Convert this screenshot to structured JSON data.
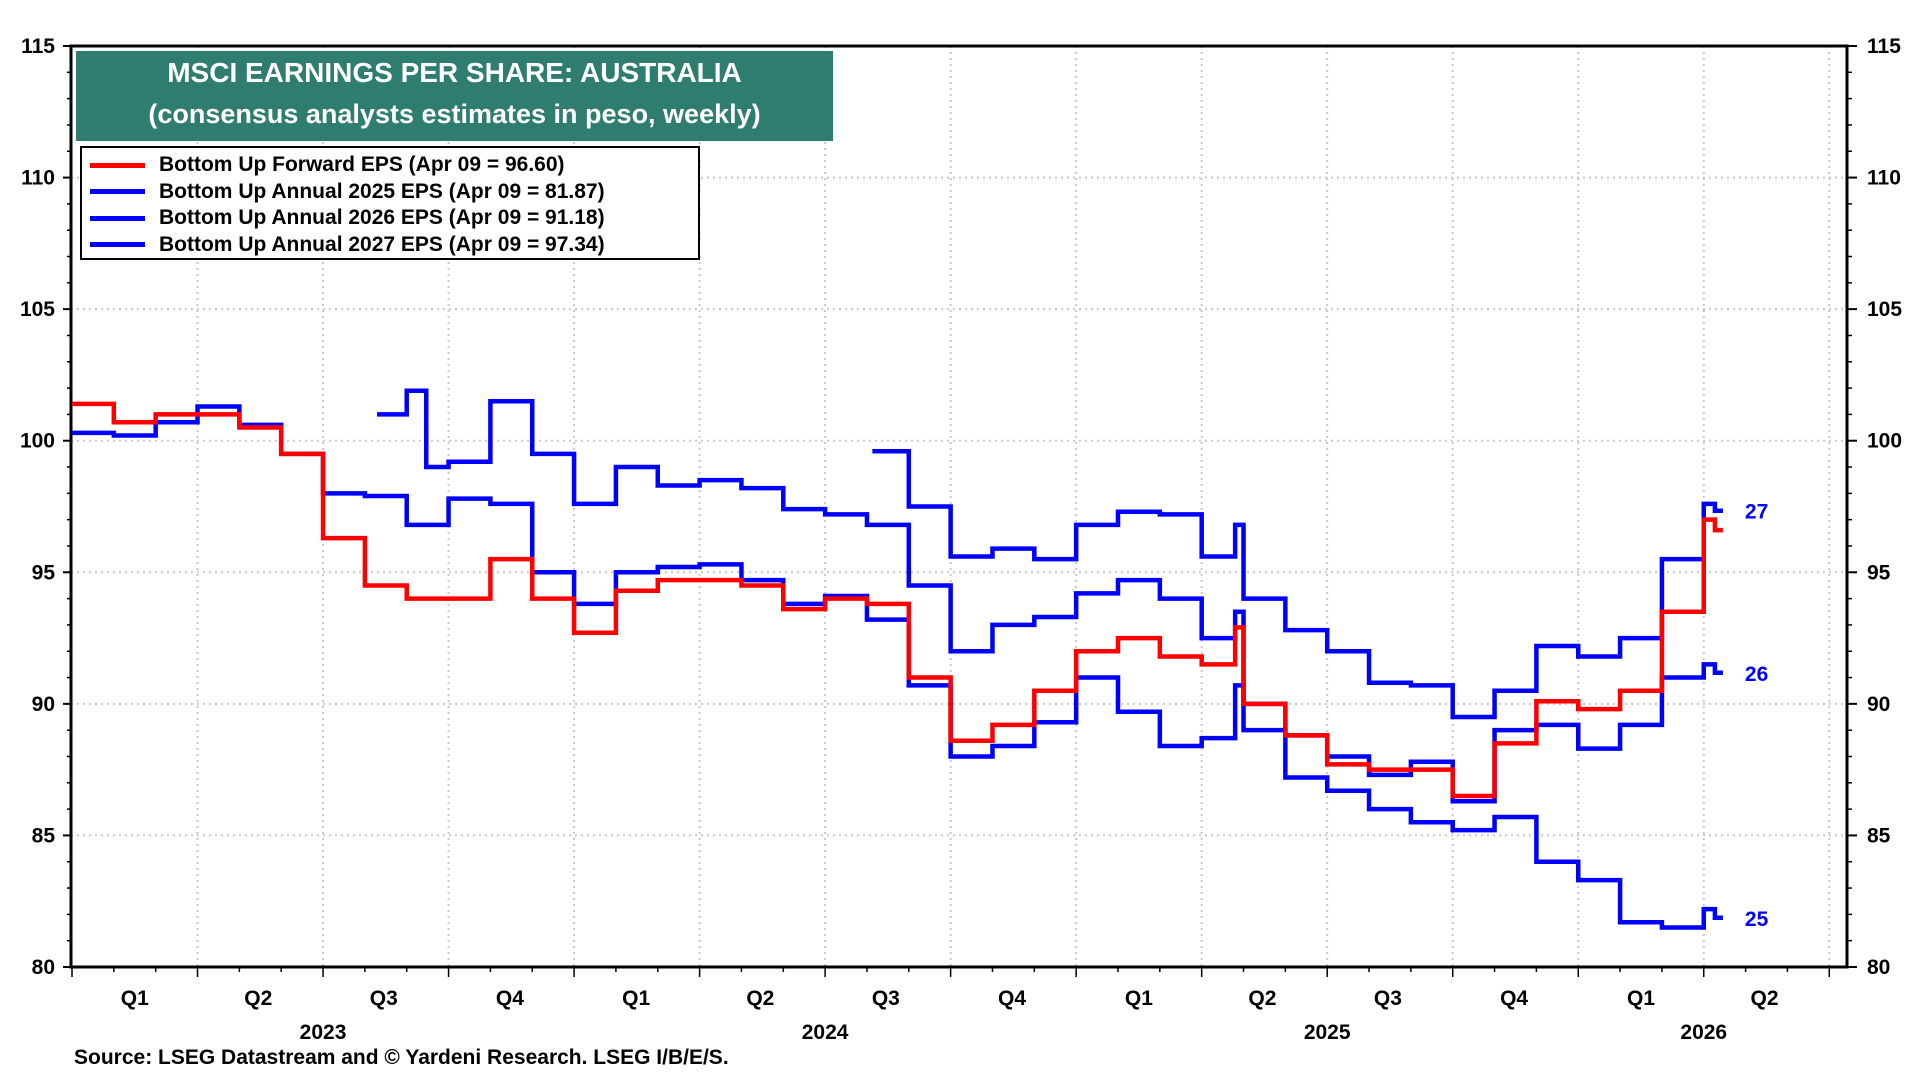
{
  "chart_data": {
    "type": "line",
    "title": "MSCI EARNINGS PER SHARE: AUSTRALIA",
    "subtitle": "(consensus analysts estimates in peso, weekly)",
    "source": "Source: LSEG Datastream and © Yardeni Research. LSEG I/B/E/S.",
    "ylim": [
      80,
      115
    ],
    "yticks": [
      "80",
      "85",
      "90",
      "95",
      "100",
      "105",
      "110",
      "115"
    ],
    "xlim": [
      "2023-01-01",
      "2026-07-15"
    ],
    "x_quarter_labels": [
      {
        "label": "Q1",
        "date": "2023-02-15"
      },
      {
        "label": "Q2",
        "date": "2023-05-15"
      },
      {
        "label": "Q3",
        "date": "2023-08-15"
      },
      {
        "label": "Q4",
        "date": "2023-11-15"
      },
      {
        "label": "Q1",
        "date": "2024-02-15"
      },
      {
        "label": "Q2",
        "date": "2024-05-15"
      },
      {
        "label": "Q3",
        "date": "2024-08-15"
      },
      {
        "label": "Q4",
        "date": "2024-11-15"
      },
      {
        "label": "Q1",
        "date": "2025-02-15"
      },
      {
        "label": "Q2",
        "date": "2025-05-15"
      },
      {
        "label": "Q3",
        "date": "2025-08-15"
      },
      {
        "label": "Q4",
        "date": "2025-11-15"
      },
      {
        "label": "Q1",
        "date": "2026-02-15"
      },
      {
        "label": "Q2",
        "date": "2026-05-15"
      }
    ],
    "x_year_labels": [
      {
        "label": "2023",
        "date": "2023-07-01"
      },
      {
        "label": "2024",
        "date": "2024-07-01"
      },
      {
        "label": "2025",
        "date": "2025-07-01"
      },
      {
        "label": "2026",
        "date": "2026-04-01"
      }
    ],
    "grid": true,
    "legend_position": "top-left",
    "series": [
      {
        "name": "Bottom Up Forward EPS (Apr 09 = 96.60)",
        "color": "#ff0000",
        "end_label": "",
        "points": [
          [
            "2023-01-01",
            101.4
          ],
          [
            "2023-02-01",
            100.7
          ],
          [
            "2023-03-01",
            101.0
          ],
          [
            "2023-04-01",
            101.0
          ],
          [
            "2023-05-01",
            100.5
          ],
          [
            "2023-06-01",
            99.5
          ],
          [
            "2023-07-01",
            96.3
          ],
          [
            "2023-08-01",
            94.5
          ],
          [
            "2023-09-01",
            94.0
          ],
          [
            "2023-10-01",
            94.0
          ],
          [
            "2023-11-01",
            95.5
          ],
          [
            "2023-12-01",
            94.0
          ],
          [
            "2024-01-01",
            92.7
          ],
          [
            "2024-02-01",
            94.3
          ],
          [
            "2024-03-01",
            94.7
          ],
          [
            "2024-04-01",
            94.7
          ],
          [
            "2024-05-01",
            94.5
          ],
          [
            "2024-06-01",
            93.6
          ],
          [
            "2024-07-01",
            94.0
          ],
          [
            "2024-08-01",
            93.8
          ],
          [
            "2024-09-01",
            91.0
          ],
          [
            "2024-10-01",
            88.6
          ],
          [
            "2024-11-01",
            89.2
          ],
          [
            "2024-12-01",
            90.5
          ],
          [
            "2025-01-01",
            92.0
          ],
          [
            "2025-02-01",
            92.5
          ],
          [
            "2025-03-01",
            91.8
          ],
          [
            "2025-04-01",
            91.5
          ],
          [
            "2025-04-25",
            92.9
          ],
          [
            "2025-05-01",
            90.0
          ],
          [
            "2025-06-01",
            88.8
          ],
          [
            "2025-07-01",
            87.7
          ],
          [
            "2025-08-01",
            87.5
          ],
          [
            "2025-09-01",
            87.5
          ],
          [
            "2025-10-01",
            86.5
          ],
          [
            "2025-11-01",
            88.5
          ],
          [
            "2025-12-01",
            90.1
          ],
          [
            "2026-01-01",
            89.8
          ],
          [
            "2026-02-01",
            90.5
          ],
          [
            "2026-03-01",
            93.5
          ],
          [
            "2026-04-01",
            97.0
          ],
          [
            "2026-04-09",
            96.6
          ]
        ]
      },
      {
        "name": "Bottom Up Annual 2025 EPS (Apr 09 = 81.87)",
        "color": "#0000ff",
        "end_label": "25",
        "points": [
          [
            "2023-01-01",
            100.3
          ],
          [
            "2023-02-01",
            100.2
          ],
          [
            "2023-03-01",
            100.7
          ],
          [
            "2023-04-01",
            101.3
          ],
          [
            "2023-05-01",
            100.6
          ],
          [
            "2023-06-01",
            99.5
          ],
          [
            "2023-07-01",
            98.0
          ],
          [
            "2023-08-01",
            97.9
          ],
          [
            "2023-09-01",
            96.8
          ],
          [
            "2023-10-01",
            97.8
          ],
          [
            "2023-11-01",
            97.6
          ],
          [
            "2023-12-01",
            95.0
          ],
          [
            "2024-01-01",
            93.8
          ],
          [
            "2024-02-01",
            95.0
          ],
          [
            "2024-03-01",
            95.2
          ],
          [
            "2024-04-01",
            95.3
          ],
          [
            "2024-05-01",
            94.7
          ],
          [
            "2024-06-01",
            93.8
          ],
          [
            "2024-07-01",
            94.1
          ],
          [
            "2024-08-01",
            93.2
          ],
          [
            "2024-09-01",
            90.7
          ],
          [
            "2024-10-01",
            88.0
          ],
          [
            "2024-11-01",
            88.4
          ],
          [
            "2024-12-01",
            89.3
          ],
          [
            "2025-01-01",
            91.0
          ],
          [
            "2025-02-01",
            89.7
          ],
          [
            "2025-03-01",
            88.4
          ],
          [
            "2025-04-01",
            88.7
          ],
          [
            "2025-04-25",
            90.7
          ],
          [
            "2025-05-01",
            89.0
          ],
          [
            "2025-06-01",
            87.2
          ],
          [
            "2025-07-01",
            86.7
          ],
          [
            "2025-08-01",
            86.0
          ],
          [
            "2025-09-01",
            85.5
          ],
          [
            "2025-10-01",
            85.2
          ],
          [
            "2025-11-01",
            85.7
          ],
          [
            "2025-12-01",
            84.0
          ],
          [
            "2026-01-01",
            83.3
          ],
          [
            "2026-02-01",
            81.7
          ],
          [
            "2026-03-01",
            81.5
          ],
          [
            "2026-04-01",
            82.2
          ],
          [
            "2026-04-09",
            81.87
          ]
        ]
      },
      {
        "name": "Bottom Up Annual 2026 EPS (Apr 09 = 91.18)",
        "color": "#0000ff",
        "end_label": "26",
        "points": [
          [
            "2023-08-10",
            101.0
          ],
          [
            "2023-09-01",
            101.9
          ],
          [
            "2023-09-15",
            99.0
          ],
          [
            "2023-10-01",
            99.2
          ],
          [
            "2023-11-01",
            101.5
          ],
          [
            "2023-12-01",
            99.5
          ],
          [
            "2024-01-01",
            97.6
          ],
          [
            "2024-02-01",
            99.0
          ],
          [
            "2024-03-01",
            98.3
          ],
          [
            "2024-04-01",
            98.5
          ],
          [
            "2024-05-01",
            98.2
          ],
          [
            "2024-06-01",
            97.4
          ],
          [
            "2024-07-01",
            97.2
          ],
          [
            "2024-08-01",
            96.8
          ],
          [
            "2024-09-01",
            94.5
          ],
          [
            "2024-10-01",
            92.0
          ],
          [
            "2024-11-01",
            93.0
          ],
          [
            "2024-12-01",
            93.3
          ],
          [
            "2025-01-01",
            94.2
          ],
          [
            "2025-02-01",
            94.7
          ],
          [
            "2025-03-01",
            94.0
          ],
          [
            "2025-04-01",
            92.5
          ],
          [
            "2025-04-25",
            93.5
          ],
          [
            "2025-05-01",
            90.0
          ],
          [
            "2025-06-01",
            88.8
          ],
          [
            "2025-07-01",
            88.0
          ],
          [
            "2025-08-01",
            87.3
          ],
          [
            "2025-09-01",
            87.8
          ],
          [
            "2025-10-01",
            86.3
          ],
          [
            "2025-11-01",
            89.0
          ],
          [
            "2025-12-01",
            89.2
          ],
          [
            "2026-01-01",
            88.3
          ],
          [
            "2026-02-01",
            89.2
          ],
          [
            "2026-03-01",
            91.0
          ],
          [
            "2026-04-01",
            91.5
          ],
          [
            "2026-04-09",
            91.18
          ]
        ]
      },
      {
        "name": "Bottom Up Annual 2027 EPS (Apr 09 = 97.34)",
        "color": "#0000ff",
        "end_label": "27",
        "points": [
          [
            "2024-08-05",
            99.6
          ],
          [
            "2024-09-01",
            97.5
          ],
          [
            "2024-10-01",
            95.6
          ],
          [
            "2024-11-01",
            95.9
          ],
          [
            "2024-12-01",
            95.5
          ],
          [
            "2025-01-01",
            96.8
          ],
          [
            "2025-02-01",
            97.3
          ],
          [
            "2025-03-01",
            97.2
          ],
          [
            "2025-04-01",
            95.6
          ],
          [
            "2025-04-25",
            96.8
          ],
          [
            "2025-05-01",
            94.0
          ],
          [
            "2025-06-01",
            92.8
          ],
          [
            "2025-07-01",
            92.0
          ],
          [
            "2025-08-01",
            90.8
          ],
          [
            "2025-09-01",
            90.7
          ],
          [
            "2025-10-01",
            89.5
          ],
          [
            "2025-11-01",
            90.5
          ],
          [
            "2025-12-01",
            92.2
          ],
          [
            "2026-01-01",
            91.8
          ],
          [
            "2026-02-01",
            92.5
          ],
          [
            "2026-03-01",
            95.5
          ],
          [
            "2026-04-01",
            97.6
          ],
          [
            "2026-04-09",
            97.34
          ]
        ]
      }
    ]
  }
}
